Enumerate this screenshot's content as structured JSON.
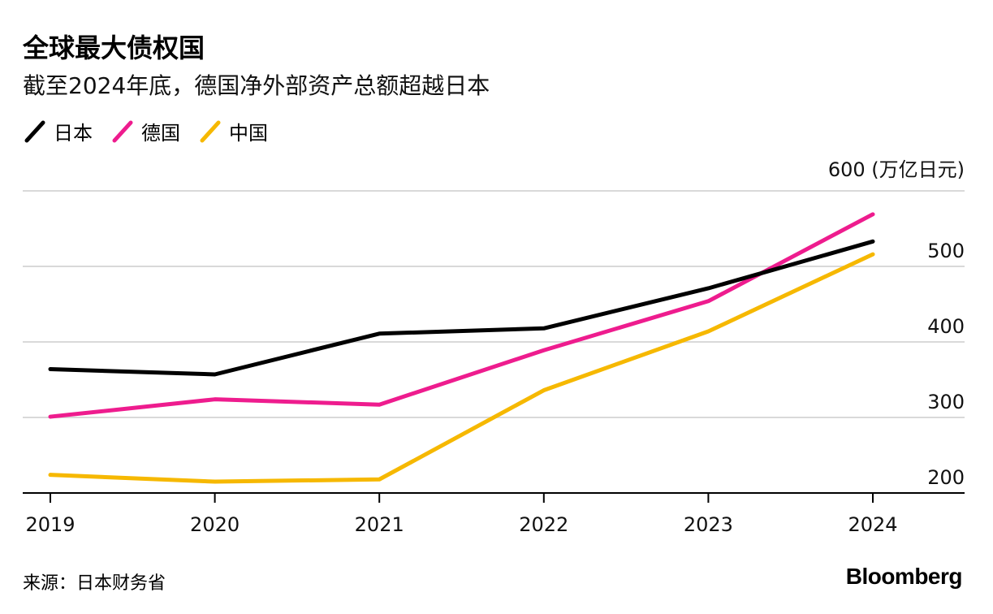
{
  "title": "全球最大债权国",
  "subtitle": "截至2024年底，德国净外部资产总额超越日本",
  "source": "来源：日本财务省",
  "brand": "Bloomberg",
  "chart_data": {
    "type": "line",
    "x": [
      "2019",
      "2020",
      "2021",
      "2022",
      "2023",
      "2024"
    ],
    "y_unit_label": "600 (万亿日元)",
    "ylim": [
      200,
      600
    ],
    "yticks": [
      200,
      300,
      400,
      500
    ],
    "grid": true,
    "legend_position": "top-left",
    "series": [
      {
        "name": "日本",
        "color": "#000000",
        "values": [
          364,
          357,
          411,
          418,
          471,
          533
        ]
      },
      {
        "name": "德国",
        "color": "#ee1c8e",
        "values": [
          301,
          324,
          317,
          389,
          454,
          569
        ]
      },
      {
        "name": "中国",
        "color": "#f6b800",
        "values": [
          224,
          215,
          218,
          336,
          414,
          516
        ]
      }
    ]
  }
}
